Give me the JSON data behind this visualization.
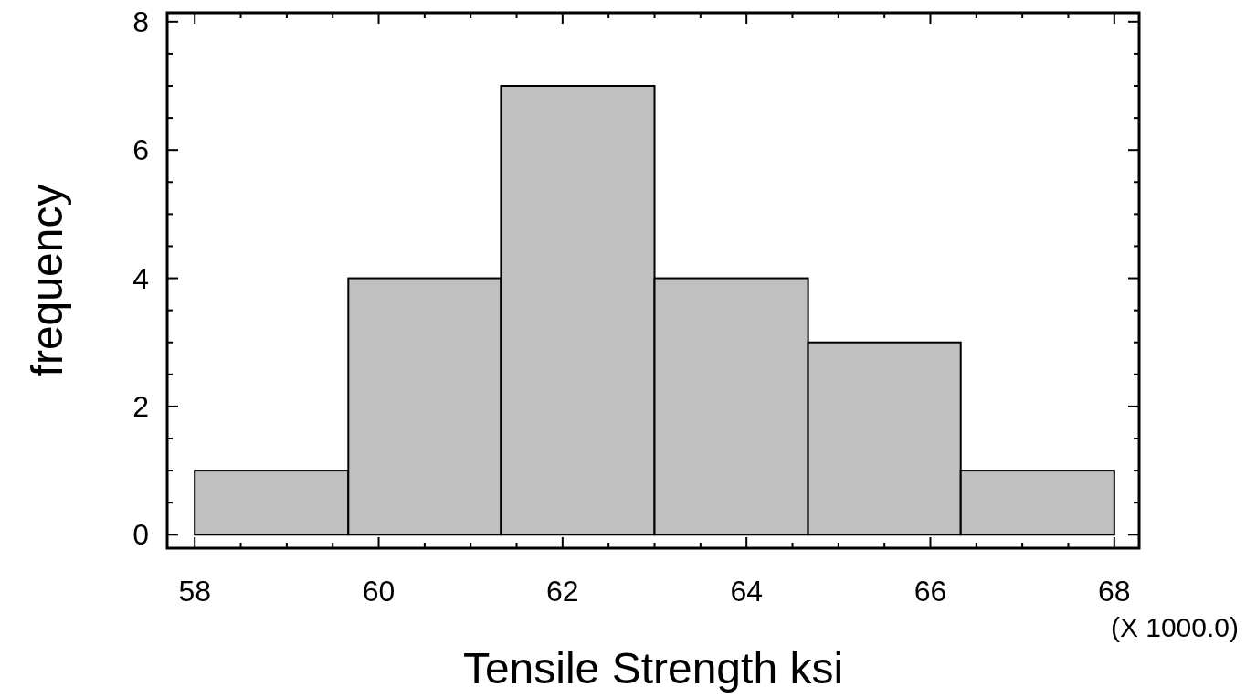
{
  "chart_data": {
    "type": "histogram",
    "xlabel": "Tensile Strength ksi",
    "ylabel": "frequency",
    "annotations": [
      "(X 1000.0)"
    ],
    "bins": [
      58,
      59.67,
      61.33,
      63,
      64.67,
      66.33,
      68
    ],
    "values": [
      1,
      4,
      7,
      4,
      3,
      1
    ],
    "color": "#c0c0c0",
    "xlim": [
      57.7,
      68.27
    ],
    "ylim": [
      -0.21,
      8.14
    ],
    "xticks": [
      58,
      {
        "value": 58.5,
        "label": null
      },
      {
        "value": 59,
        "label": null
      },
      {
        "value": 59.5,
        "label": null
      },
      60,
      {
        "value": 60.5,
        "label": null
      },
      {
        "value": 61,
        "label": null
      },
      {
        "value": 61.5,
        "label": null
      },
      62,
      {
        "value": 62.5,
        "label": null
      },
      {
        "value": 63,
        "label": null
      },
      {
        "value": 63.5,
        "label": null
      },
      64,
      {
        "value": 64.5,
        "label": null
      },
      {
        "value": 65,
        "label": null
      },
      {
        "value": 65.5,
        "label": null
      },
      66,
      {
        "value": 66.5,
        "label": null
      },
      {
        "value": 67,
        "label": null
      },
      {
        "value": 67.5,
        "label": null
      },
      68
    ],
    "yticks": [
      0,
      {
        "value": 0.5,
        "label": null
      },
      {
        "value": 1,
        "label": null
      },
      {
        "value": 1.5,
        "label": null
      },
      2,
      {
        "value": 2.5,
        "label": null
      },
      {
        "value": 3,
        "label": null
      },
      {
        "value": 3.5,
        "label": null
      },
      4,
      {
        "value": 4.5,
        "label": null
      },
      {
        "value": 5,
        "label": null
      },
      {
        "value": 5.5,
        "label": null
      },
      6,
      {
        "value": 6.5,
        "label": null
      },
      {
        "value": 7,
        "label": null
      },
      {
        "value": 7.5,
        "label": null
      },
      8
    ],
    "grid": false
  }
}
